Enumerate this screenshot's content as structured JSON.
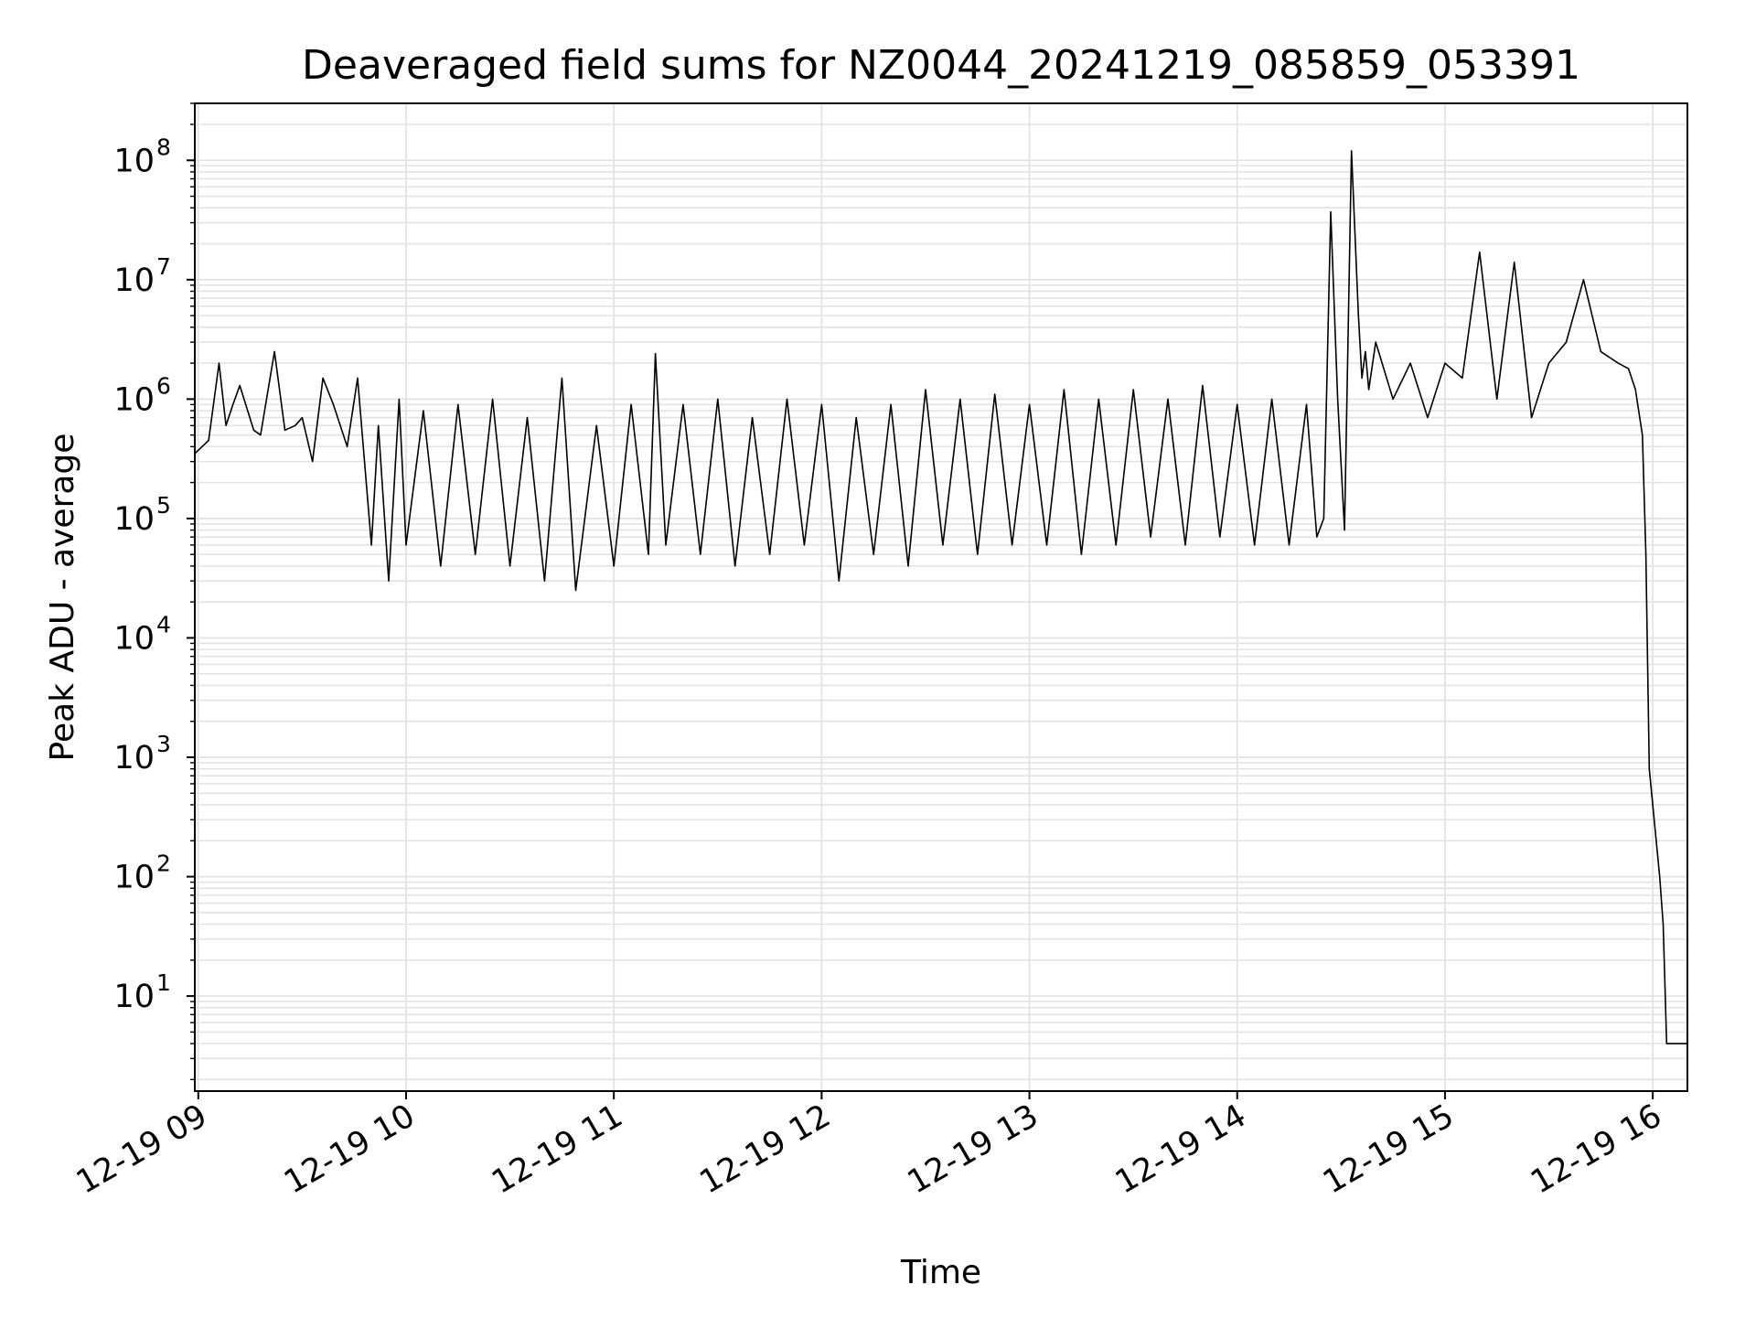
{
  "chart_data": {
    "type": "line",
    "title": "Deaveraged field sums for NZ0044_20241219_085859_053391",
    "xlabel": "Time",
    "ylabel": "Peak ADU - average",
    "yscale": "log",
    "xlim": [
      "2024-12-19 08:59",
      "2024-12-19 16:10"
    ],
    "ylim": [
      1.6,
      300000000
    ],
    "grid": true,
    "line_color": "#000000",
    "grid_color": "#e3e3e3",
    "x_ticks": [
      {
        "value": "2024-12-19 09:00",
        "label": "12-19 09"
      },
      {
        "value": "2024-12-19 10:00",
        "label": "12-19 10"
      },
      {
        "value": "2024-12-19 11:00",
        "label": "12-19 11"
      },
      {
        "value": "2024-12-19 12:00",
        "label": "12-19 12"
      },
      {
        "value": "2024-12-19 13:00",
        "label": "12-19 13"
      },
      {
        "value": "2024-12-19 14:00",
        "label": "12-19 14"
      },
      {
        "value": "2024-12-19 15:00",
        "label": "12-19 15"
      },
      {
        "value": "2024-12-19 16:00",
        "label": "12-19 16"
      }
    ],
    "y_ticks": [
      {
        "value": 10,
        "base": "10",
        "exp": "1"
      },
      {
        "value": 100,
        "base": "10",
        "exp": "2"
      },
      {
        "value": 1000,
        "base": "10",
        "exp": "3"
      },
      {
        "value": 10000,
        "base": "10",
        "exp": "4"
      },
      {
        "value": 100000,
        "base": "10",
        "exp": "5"
      },
      {
        "value": 1000000,
        "base": "10",
        "exp": "6"
      },
      {
        "value": 10000000,
        "base": "10",
        "exp": "7"
      },
      {
        "value": 100000000,
        "base": "10",
        "exp": "8"
      }
    ],
    "series": [
      {
        "x": [
          "2024-12-19 08:59",
          "2024-12-19 09:03",
          "2024-12-19 09:06",
          "2024-12-19 09:08",
          "2024-12-19 09:10",
          "2024-12-19 09:12",
          "2024-12-19 09:16",
          "2024-12-19 09:18",
          "2024-12-19 09:22",
          "2024-12-19 09:25",
          "2024-12-19 09:28",
          "2024-12-19 09:30",
          "2024-12-19 09:33",
          "2024-12-19 09:36",
          "2024-12-19 09:39",
          "2024-12-19 09:43",
          "2024-12-19 09:46",
          "2024-12-19 09:50",
          "2024-12-19 09:52",
          "2024-12-19 09:55",
          "2024-12-19 09:58",
          "2024-12-19 10:00",
          "2024-12-19 10:05",
          "2024-12-19 10:10",
          "2024-12-19 10:15",
          "2024-12-19 10:20",
          "2024-12-19 10:25",
          "2024-12-19 10:30",
          "2024-12-19 10:35",
          "2024-12-19 10:40",
          "2024-12-19 10:45",
          "2024-12-19 10:49",
          "2024-12-19 10:55",
          "2024-12-19 11:00",
          "2024-12-19 11:05",
          "2024-12-19 11:10",
          "2024-12-19 11:12",
          "2024-12-19 11:15",
          "2024-12-19 11:20",
          "2024-12-19 11:25",
          "2024-12-19 11:30",
          "2024-12-19 11:35",
          "2024-12-19 11:40",
          "2024-12-19 11:45",
          "2024-12-19 11:50",
          "2024-12-19 11:55",
          "2024-12-19 12:00",
          "2024-12-19 12:05",
          "2024-12-19 12:10",
          "2024-12-19 12:15",
          "2024-12-19 12:20",
          "2024-12-19 12:25",
          "2024-12-19 12:30",
          "2024-12-19 12:35",
          "2024-12-19 12:40",
          "2024-12-19 12:45",
          "2024-12-19 12:50",
          "2024-12-19 12:55",
          "2024-12-19 13:00",
          "2024-12-19 13:05",
          "2024-12-19 13:10",
          "2024-12-19 13:15",
          "2024-12-19 13:20",
          "2024-12-19 13:25",
          "2024-12-19 13:30",
          "2024-12-19 13:35",
          "2024-12-19 13:40",
          "2024-12-19 13:45",
          "2024-12-19 13:50",
          "2024-12-19 13:55",
          "2024-12-19 14:00",
          "2024-12-19 14:05",
          "2024-12-19 14:10",
          "2024-12-19 14:15",
          "2024-12-19 14:20",
          "2024-12-19 14:23",
          "2024-12-19 14:25",
          "2024-12-19 14:27",
          "2024-12-19 14:29",
          "2024-12-19 14:31",
          "2024-12-19 14:33",
          "2024-12-19 14:35",
          "2024-12-19 14:36",
          "2024-12-19 14:37",
          "2024-12-19 14:38",
          "2024-12-19 14:40",
          "2024-12-19 14:45",
          "2024-12-19 14:50",
          "2024-12-19 14:55",
          "2024-12-19 15:00",
          "2024-12-19 15:05",
          "2024-12-19 15:10",
          "2024-12-19 15:15",
          "2024-12-19 15:20",
          "2024-12-19 15:25",
          "2024-12-19 15:30",
          "2024-12-19 15:35",
          "2024-12-19 15:40",
          "2024-12-19 15:45",
          "2024-12-19 15:50",
          "2024-12-19 15:53",
          "2024-12-19 15:55",
          "2024-12-19 15:57",
          "2024-12-19 15:58",
          "2024-12-19 15:59",
          "2024-12-19 16:00",
          "2024-12-19 16:01",
          "2024-12-19 16:02",
          "2024-12-19 16:03",
          "2024-12-19 16:04",
          "2024-12-19 16:05",
          "2024-12-19 16:10"
        ],
        "y": [
          350000,
          450000,
          2000000,
          600000,
          900000,
          1300000,
          550000,
          500000,
          2500000,
          550000,
          600000,
          700000,
          300000,
          1500000,
          900000,
          400000,
          1500000,
          60000,
          600000,
          30000,
          1000000,
          60000,
          800000,
          40000,
          900000,
          50000,
          1000000,
          40000,
          700000,
          30000,
          1500000,
          25000,
          600000,
          40000,
          900000,
          50000,
          2400000,
          60000,
          900000,
          50000,
          1000000,
          40000,
          700000,
          50000,
          1000000,
          60000,
          900000,
          30000,
          700000,
          50000,
          900000,
          40000,
          1200000,
          60000,
          1000000,
          50000,
          1100000,
          60000,
          900000,
          60000,
          1200000,
          50000,
          1000000,
          60000,
          1200000,
          70000,
          1000000,
          60000,
          1300000,
          70000,
          900000,
          60000,
          1000000,
          60000,
          900000,
          70000,
          100000,
          37000000,
          1000000,
          80000,
          120000000,
          5000000,
          1500000,
          2500000,
          1200000,
          3000000,
          1000000,
          2000000,
          700000,
          2000000,
          1500000,
          17000000,
          1000000,
          14000000,
          700000,
          2000000,
          3000000,
          10000000,
          2500000,
          2000000,
          1800000,
          1200000,
          500000,
          50000,
          800,
          400,
          200,
          100,
          40,
          4,
          4,
          4
        ]
      }
    ]
  }
}
